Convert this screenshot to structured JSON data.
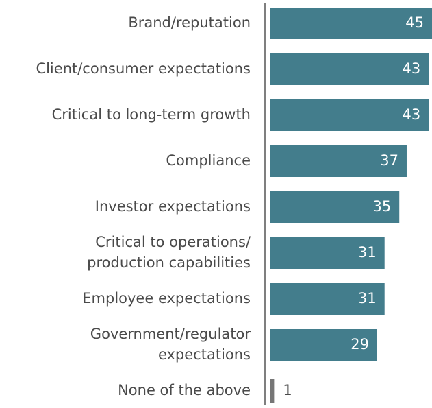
{
  "chart_data": {
    "type": "bar",
    "orientation": "horizontal",
    "categories": [
      [
        "Brand/reputation"
      ],
      [
        "Client/consumer expectations"
      ],
      [
        "Critical to long-term growth"
      ],
      [
        "Compliance"
      ],
      [
        "Investor expectations"
      ],
      [
        "Critical to operations/",
        "production capabilities"
      ],
      [
        "Employee expectations"
      ],
      [
        "Government/regulator",
        "expectations"
      ],
      [
        "None of the above"
      ]
    ],
    "values": [
      45,
      43,
      43,
      37,
      35,
      31,
      31,
      29,
      1
    ],
    "colors": [
      "#437d8c",
      "#437d8c",
      "#437d8c",
      "#437d8c",
      "#437d8c",
      "#437d8c",
      "#437d8c",
      "#437d8c",
      "#767676"
    ]
  }
}
